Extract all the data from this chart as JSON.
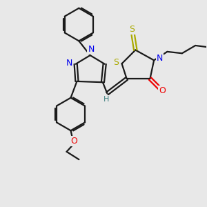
{
  "bg_color": "#e8e8e8",
  "bond_color": "#1a1a1a",
  "N_color": "#0000ee",
  "O_color": "#ee0000",
  "S_color": "#aaaa00",
  "H_color": "#408080",
  "figsize": [
    3.0,
    3.0
  ],
  "dpi": 100,
  "xlim": [
    0,
    10
  ],
  "ylim": [
    0,
    10
  ]
}
